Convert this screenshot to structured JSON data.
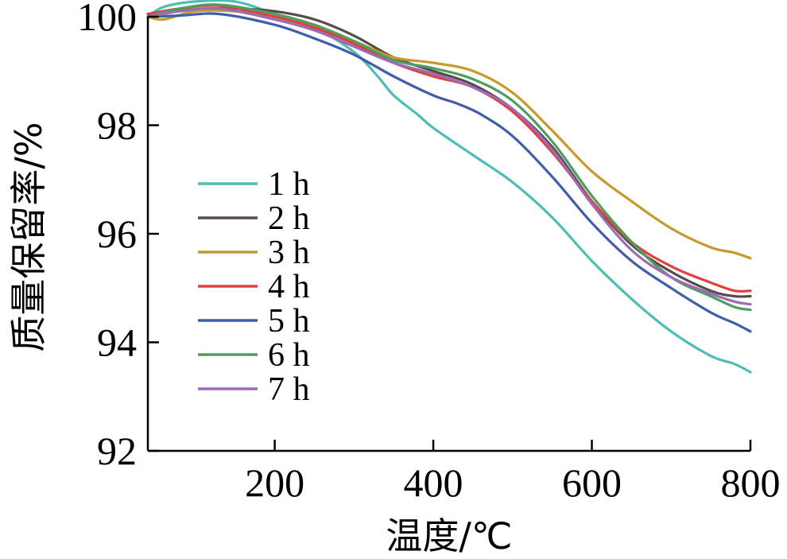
{
  "chart_data": {
    "type": "line",
    "xlabel": "温度/℃",
    "ylabel": "质量保留率/%",
    "xlim": [
      40,
      800
    ],
    "ylim": [
      92,
      100
    ],
    "xticks": [
      200,
      400,
      600,
      800
    ],
    "yticks": [
      92,
      94,
      96,
      98,
      100
    ],
    "grid": false,
    "legend_position": "left",
    "series": [
      {
        "name": "1 h",
        "color": "#4DBDB5",
        "x": [
          40,
          60,
          100,
          150,
          200,
          250,
          300,
          330,
          350,
          380,
          400,
          450,
          500,
          550,
          600,
          650,
          700,
          750,
          780,
          800
        ],
        "y": [
          100.0,
          100.18,
          100.28,
          100.28,
          100.05,
          99.8,
          99.35,
          98.9,
          98.55,
          98.2,
          97.95,
          97.45,
          96.95,
          96.3,
          95.5,
          94.8,
          94.2,
          93.75,
          93.6,
          93.45
        ]
      },
      {
        "name": "2 h",
        "color": "#5A4A48",
        "x": [
          40,
          80,
          150,
          200,
          250,
          300,
          350,
          400,
          450,
          500,
          550,
          600,
          650,
          700,
          750,
          780,
          800
        ],
        "y": [
          100.05,
          100.12,
          100.15,
          100.1,
          99.95,
          99.65,
          99.25,
          99.0,
          98.75,
          98.3,
          97.6,
          96.6,
          95.8,
          95.3,
          94.95,
          94.85,
          94.85
        ]
      },
      {
        "name": "3 h",
        "color": "#C79A2E",
        "x": [
          40,
          60,
          100,
          150,
          200,
          250,
          300,
          350,
          400,
          450,
          500,
          550,
          600,
          650,
          700,
          750,
          780,
          800
        ],
        "y": [
          100.0,
          99.95,
          100.1,
          100.1,
          100.0,
          99.8,
          99.55,
          99.25,
          99.15,
          99.0,
          98.6,
          97.9,
          97.15,
          96.6,
          96.1,
          95.75,
          95.65,
          95.55
        ]
      },
      {
        "name": "4 h",
        "color": "#E0403E",
        "x": [
          40,
          80,
          130,
          200,
          250,
          300,
          350,
          400,
          450,
          500,
          550,
          600,
          650,
          700,
          750,
          780,
          800
        ],
        "y": [
          100.05,
          100.15,
          100.2,
          100.0,
          99.8,
          99.5,
          99.15,
          98.9,
          98.7,
          98.25,
          97.5,
          96.6,
          95.85,
          95.4,
          95.1,
          94.95,
          94.95
        ]
      },
      {
        "name": "5 h",
        "color": "#3F5DA8",
        "x": [
          40,
          80,
          130,
          200,
          250,
          300,
          350,
          400,
          430,
          460,
          500,
          550,
          600,
          650,
          700,
          750,
          780,
          800
        ],
        "y": [
          100.0,
          100.02,
          100.05,
          99.85,
          99.6,
          99.3,
          98.9,
          98.55,
          98.4,
          98.2,
          97.8,
          97.05,
          96.2,
          95.5,
          95.0,
          94.55,
          94.35,
          94.2
        ]
      },
      {
        "name": "6 h",
        "color": "#4E9E5E",
        "x": [
          40,
          80,
          130,
          200,
          250,
          300,
          350,
          400,
          450,
          500,
          550,
          600,
          650,
          700,
          750,
          780,
          800
        ],
        "y": [
          100.0,
          100.15,
          100.22,
          100.05,
          99.85,
          99.55,
          99.2,
          99.05,
          98.85,
          98.45,
          97.7,
          96.7,
          95.85,
          95.2,
          94.85,
          94.65,
          94.6
        ]
      },
      {
        "name": "7 h",
        "color": "#9B6BB8",
        "x": [
          40,
          80,
          130,
          200,
          250,
          300,
          350,
          400,
          450,
          500,
          550,
          600,
          650,
          700,
          750,
          780,
          800
        ],
        "y": [
          100.0,
          100.1,
          100.15,
          99.95,
          99.75,
          99.45,
          99.15,
          98.95,
          98.7,
          98.3,
          97.55,
          96.55,
          95.7,
          95.2,
          94.9,
          94.75,
          94.7
        ]
      }
    ]
  }
}
